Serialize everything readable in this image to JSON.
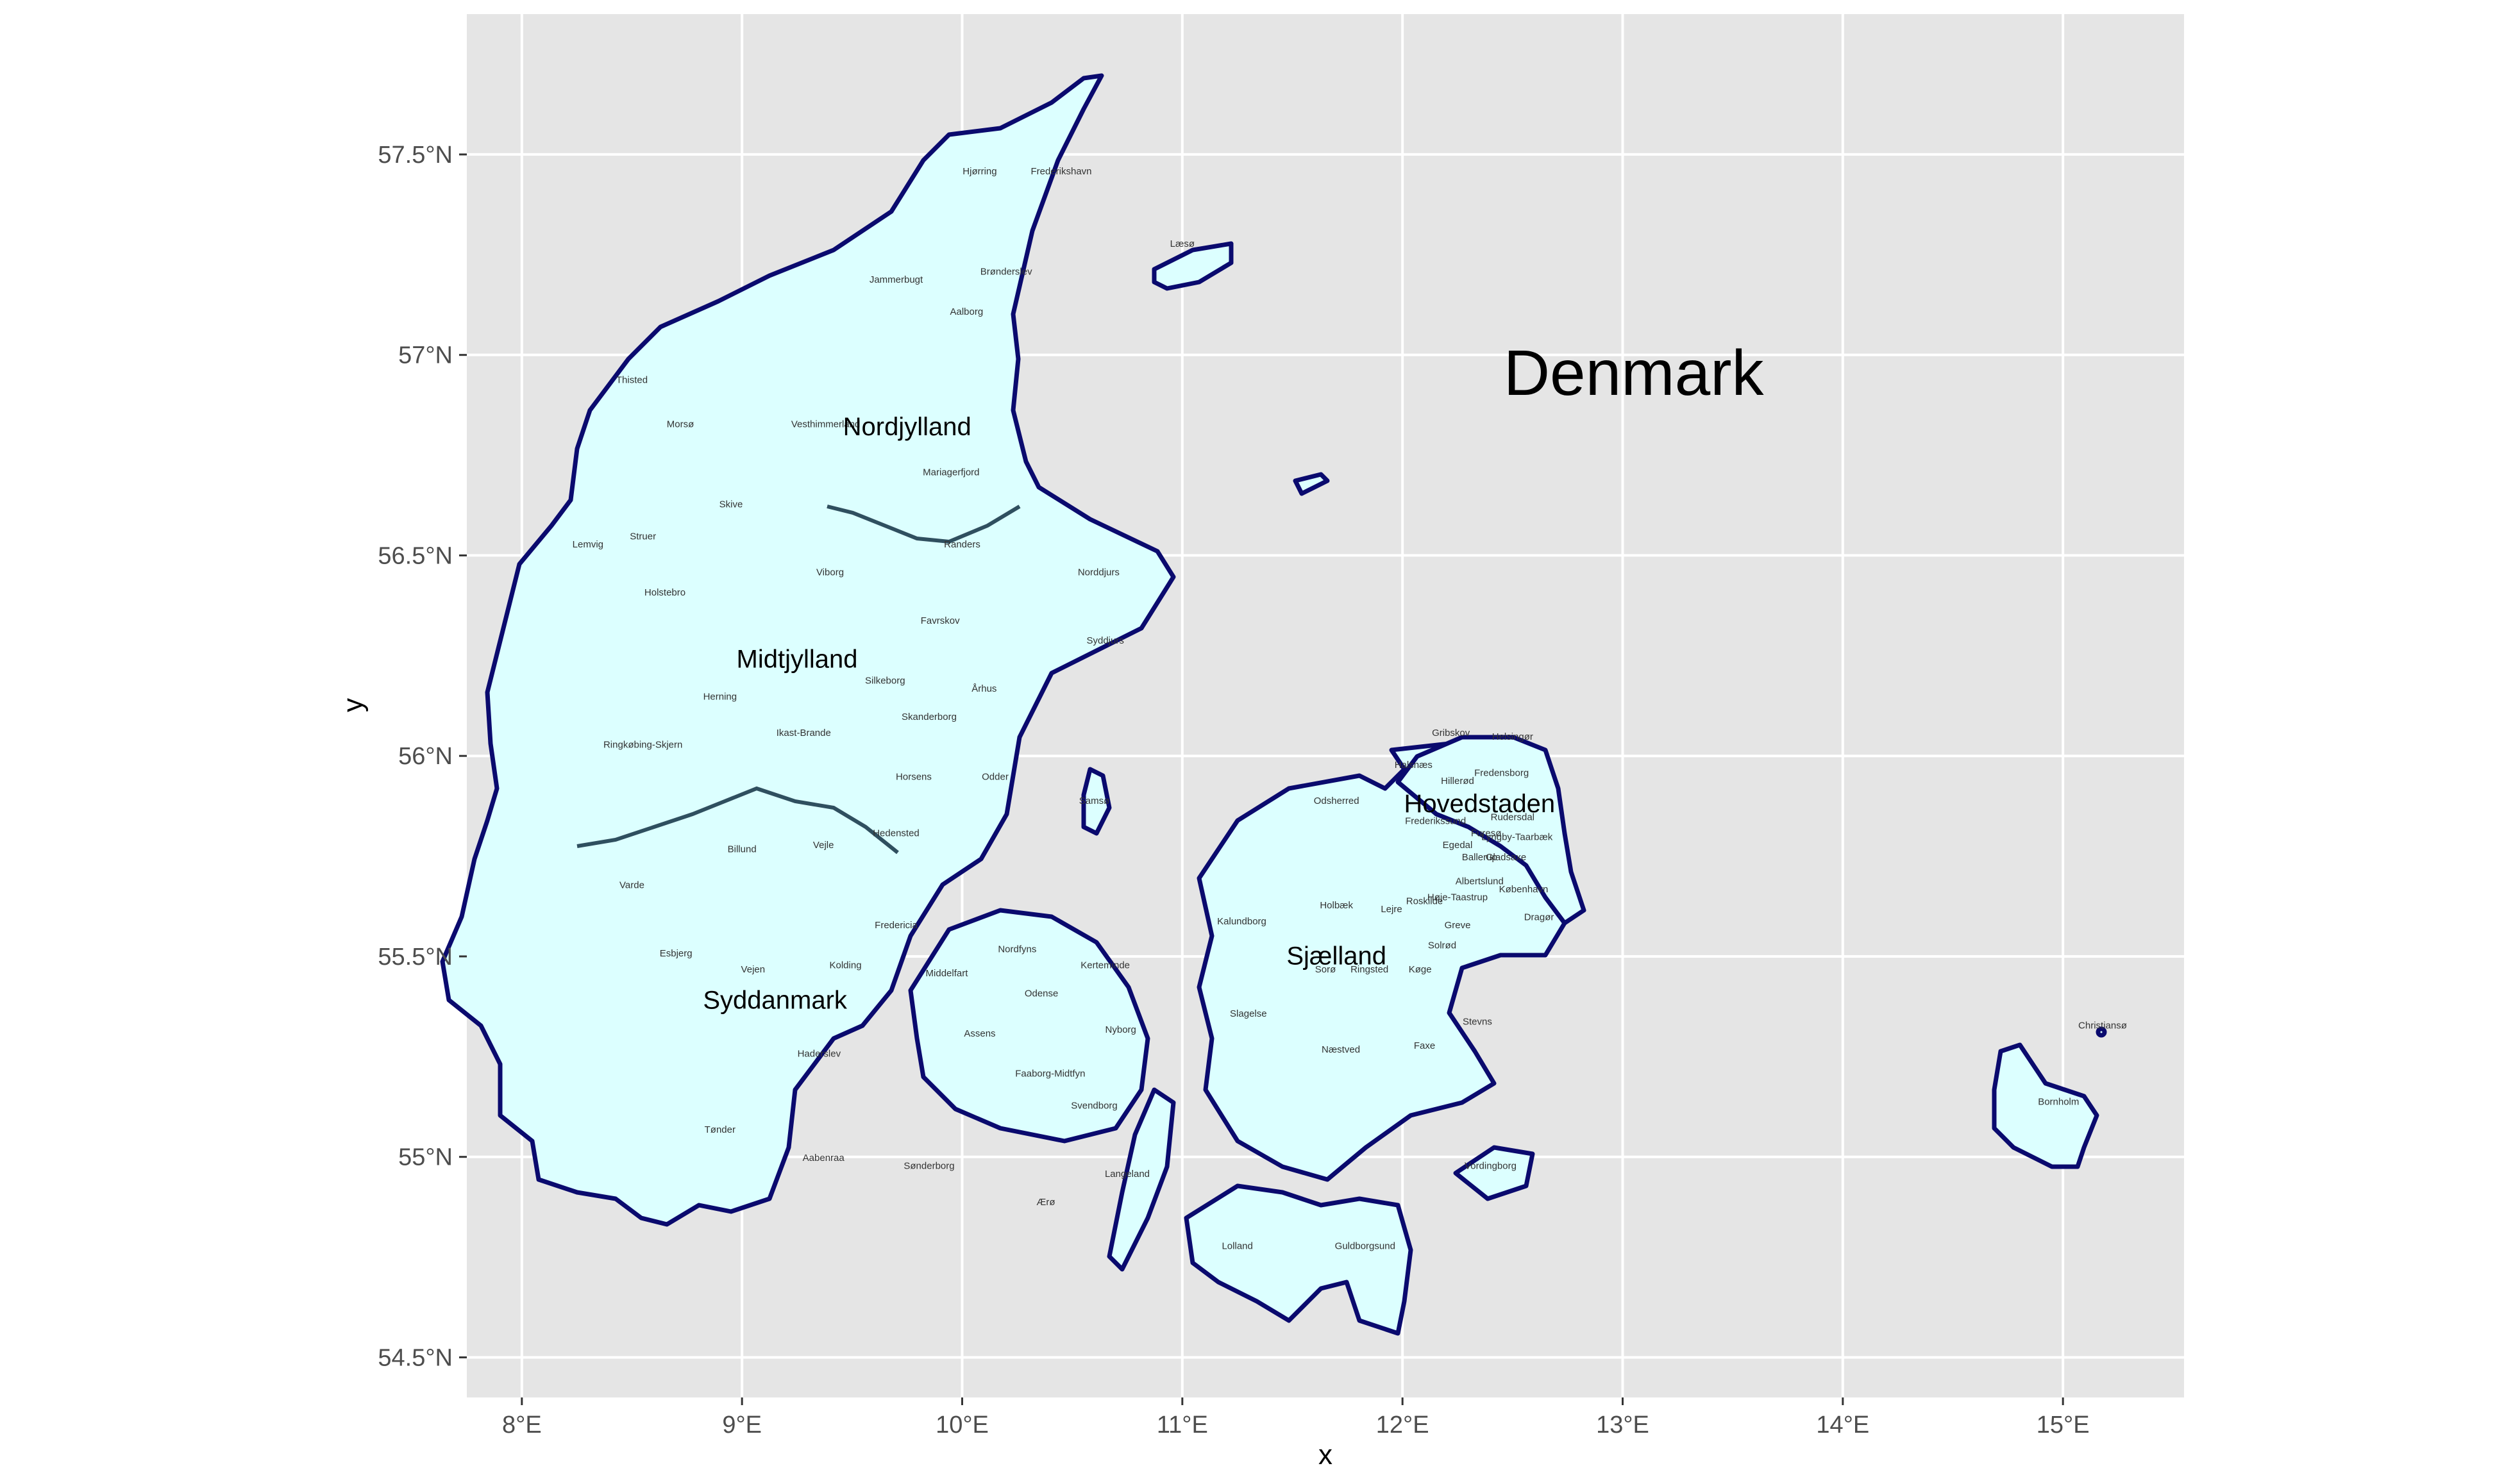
{
  "colors": {
    "panel_background": "#e5e5e5",
    "gridline": "#ffffff",
    "land_fill": "#dcffff",
    "coast_stroke": "#0a0a6e",
    "municipality_stroke": "#3a6fd0",
    "region_border": "#2f4f5f"
  },
  "map": {
    "title": "Denmark",
    "xlabel": "x",
    "ylabel": "y",
    "xlim": [
      7.75,
      15.55
    ],
    "ylim": [
      54.4,
      57.85
    ],
    "x_ticks": [
      {
        "value": 8,
        "label": "8°E"
      },
      {
        "value": 9,
        "label": "9°E"
      },
      {
        "value": 10,
        "label": "10°E"
      },
      {
        "value": 11,
        "label": "11°E"
      },
      {
        "value": 12,
        "label": "12°E"
      },
      {
        "value": 13,
        "label": "13°E"
      },
      {
        "value": 14,
        "label": "14°E"
      },
      {
        "value": 15,
        "label": "15°E"
      }
    ],
    "y_ticks": [
      {
        "value": 54.5,
        "label": "54.5°N"
      },
      {
        "value": 55,
        "label": "55°N"
      },
      {
        "value": 55.5,
        "label": "55.5°N"
      },
      {
        "value": 56,
        "label": "56°N"
      },
      {
        "value": 56.5,
        "label": "56.5°N"
      },
      {
        "value": 57,
        "label": "57°N"
      },
      {
        "value": 57.5,
        "label": "57.5°N"
      }
    ],
    "title_position": {
      "lon": 13.05,
      "lat": 56.9
    },
    "regions": [
      {
        "name": "Nordjylland",
        "lon": 9.75,
        "lat": 56.8
      },
      {
        "name": "Midtjylland",
        "lon": 9.25,
        "lat": 56.22
      },
      {
        "name": "Syddanmark",
        "lon": 9.15,
        "lat": 55.37
      },
      {
        "name": "Sjælland",
        "lon": 11.7,
        "lat": 55.48
      },
      {
        "name": "Hovedstaden",
        "lon": 12.35,
        "lat": 55.86
      }
    ],
    "municipalities": [
      {
        "name": "Hjørring",
        "lon": 10.08,
        "lat": 57.45
      },
      {
        "name": "Frederikshavn",
        "lon": 10.45,
        "lat": 57.45
      },
      {
        "name": "Læsø",
        "lon": 11.0,
        "lat": 57.27
      },
      {
        "name": "Brønderslev",
        "lon": 10.2,
        "lat": 57.2
      },
      {
        "name": "Jammerbugt",
        "lon": 9.7,
        "lat": 57.18
      },
      {
        "name": "Aalborg",
        "lon": 10.02,
        "lat": 57.1
      },
      {
        "name": "Thisted",
        "lon": 8.5,
        "lat": 56.93
      },
      {
        "name": "Morsø",
        "lon": 8.72,
        "lat": 56.82
      },
      {
        "name": "Vesthimmerland",
        "lon": 9.38,
        "lat": 56.82
      },
      {
        "name": "Mariagerfjord",
        "lon": 9.95,
        "lat": 56.7
      },
      {
        "name": "Struer",
        "lon": 8.55,
        "lat": 56.54
      },
      {
        "name": "Skive",
        "lon": 8.95,
        "lat": 56.62
      },
      {
        "name": "Lemvig",
        "lon": 8.3,
        "lat": 56.52
      },
      {
        "name": "Randers",
        "lon": 10.0,
        "lat": 56.52
      },
      {
        "name": "Viborg",
        "lon": 9.4,
        "lat": 56.45
      },
      {
        "name": "Norddjurs",
        "lon": 10.62,
        "lat": 56.45
      },
      {
        "name": "Holstebro",
        "lon": 8.65,
        "lat": 56.4
      },
      {
        "name": "Favrskov",
        "lon": 9.9,
        "lat": 56.33
      },
      {
        "name": "Syddjurs",
        "lon": 10.65,
        "lat": 56.28
      },
      {
        "name": "Silkeborg",
        "lon": 9.65,
        "lat": 56.18
      },
      {
        "name": "Århus",
        "lon": 10.1,
        "lat": 56.16
      },
      {
        "name": "Herning",
        "lon": 8.9,
        "lat": 56.14
      },
      {
        "name": "Skanderborg",
        "lon": 9.85,
        "lat": 56.09
      },
      {
        "name": "Ikast-Brande",
        "lon": 9.28,
        "lat": 56.05
      },
      {
        "name": "Ringkøbing-Skjern",
        "lon": 8.55,
        "lat": 56.02
      },
      {
        "name": "Horsens",
        "lon": 9.78,
        "lat": 55.94
      },
      {
        "name": "Odder",
        "lon": 10.15,
        "lat": 55.94
      },
      {
        "name": "Samsø",
        "lon": 10.6,
        "lat": 55.88
      },
      {
        "name": "Hedensted",
        "lon": 9.7,
        "lat": 55.8
      },
      {
        "name": "Billund",
        "lon": 9.0,
        "lat": 55.76
      },
      {
        "name": "Vejle",
        "lon": 9.37,
        "lat": 55.77
      },
      {
        "name": "Varde",
        "lon": 8.5,
        "lat": 55.67
      },
      {
        "name": "Fredericia",
        "lon": 9.7,
        "lat": 55.57
      },
      {
        "name": "Esbjerg",
        "lon": 8.7,
        "lat": 55.5
      },
      {
        "name": "Vejen",
        "lon": 9.05,
        "lat": 55.46
      },
      {
        "name": "Kolding",
        "lon": 9.47,
        "lat": 55.47
      },
      {
        "name": "Nordfyns",
        "lon": 10.25,
        "lat": 55.51
      },
      {
        "name": "Kerteminde",
        "lon": 10.65,
        "lat": 55.47
      },
      {
        "name": "Middelfart",
        "lon": 9.93,
        "lat": 55.45
      },
      {
        "name": "Odense",
        "lon": 10.36,
        "lat": 55.4
      },
      {
        "name": "Assens",
        "lon": 10.08,
        "lat": 55.3
      },
      {
        "name": "Nyborg",
        "lon": 10.72,
        "lat": 55.31
      },
      {
        "name": "Haderslev",
        "lon": 9.35,
        "lat": 55.25
      },
      {
        "name": "Faaborg-Midtfyn",
        "lon": 10.4,
        "lat": 55.2
      },
      {
        "name": "Svendborg",
        "lon": 10.6,
        "lat": 55.12
      },
      {
        "name": "Tønder",
        "lon": 8.9,
        "lat": 55.06
      },
      {
        "name": "Aabenraa",
        "lon": 9.37,
        "lat": 54.99
      },
      {
        "name": "Sønderborg",
        "lon": 9.85,
        "lat": 54.97
      },
      {
        "name": "Langeland",
        "lon": 10.75,
        "lat": 54.95
      },
      {
        "name": "Ærø",
        "lon": 10.38,
        "lat": 54.88
      },
      {
        "name": "Gribskov",
        "lon": 12.22,
        "lat": 56.05
      },
      {
        "name": "Helsingør",
        "lon": 12.5,
        "lat": 56.04
      },
      {
        "name": "Fredensborg",
        "lon": 12.45,
        "lat": 55.95
      },
      {
        "name": "Hillerød",
        "lon": 12.25,
        "lat": 55.93
      },
      {
        "name": "Halsnæs",
        "lon": 12.05,
        "lat": 55.97
      },
      {
        "name": "Odsherred",
        "lon": 11.7,
        "lat": 55.88
      },
      {
        "name": "Frederikssund",
        "lon": 12.15,
        "lat": 55.83
      },
      {
        "name": "Egedal",
        "lon": 12.25,
        "lat": 55.77
      },
      {
        "name": "Furesø",
        "lon": 12.38,
        "lat": 55.8
      },
      {
        "name": "Rudersdal",
        "lon": 12.5,
        "lat": 55.84
      },
      {
        "name": "Lyngby-Taarbæk",
        "lon": 12.52,
        "lat": 55.79
      },
      {
        "name": "Ballerup",
        "lon": 12.35,
        "lat": 55.74
      },
      {
        "name": "Albertslund",
        "lon": 12.35,
        "lat": 55.68
      },
      {
        "name": "Gladsaxe",
        "lon": 12.47,
        "lat": 55.74
      },
      {
        "name": "København",
        "lon": 12.55,
        "lat": 55.66
      },
      {
        "name": "Holbæk",
        "lon": 11.7,
        "lat": 55.62
      },
      {
        "name": "Lejre",
        "lon": 11.95,
        "lat": 55.61
      },
      {
        "name": "Roskilde",
        "lon": 12.1,
        "lat": 55.63
      },
      {
        "name": "Høje-Taastrup",
        "lon": 12.25,
        "lat": 55.64
      },
      {
        "name": "Dragør",
        "lon": 12.62,
        "lat": 55.59
      },
      {
        "name": "Greve",
        "lon": 12.25,
        "lat": 55.57
      },
      {
        "name": "Solrød",
        "lon": 12.18,
        "lat": 55.52
      },
      {
        "name": "Kalundborg",
        "lon": 11.27,
        "lat": 55.58
      },
      {
        "name": "Sorø",
        "lon": 11.65,
        "lat": 55.46
      },
      {
        "name": "Ringsted",
        "lon": 11.85,
        "lat": 55.46
      },
      {
        "name": "Køge",
        "lon": 12.08,
        "lat": 55.46
      },
      {
        "name": "Slagelse",
        "lon": 11.3,
        "lat": 55.35
      },
      {
        "name": "Stevns",
        "lon": 12.34,
        "lat": 55.33
      },
      {
        "name": "Næstved",
        "lon": 11.72,
        "lat": 55.26
      },
      {
        "name": "Faxe",
        "lon": 12.1,
        "lat": 55.27
      },
      {
        "name": "Vordingborg",
        "lon": 12.4,
        "lat": 54.97
      },
      {
        "name": "Lolland",
        "lon": 11.25,
        "lat": 54.77
      },
      {
        "name": "Guldborgsund",
        "lon": 11.83,
        "lat": 54.77
      },
      {
        "name": "Bornholm",
        "lon": 14.98,
        "lat": 55.13
      },
      {
        "name": "Christiansø",
        "lon": 15.18,
        "lat": 55.32
      }
    ]
  }
}
